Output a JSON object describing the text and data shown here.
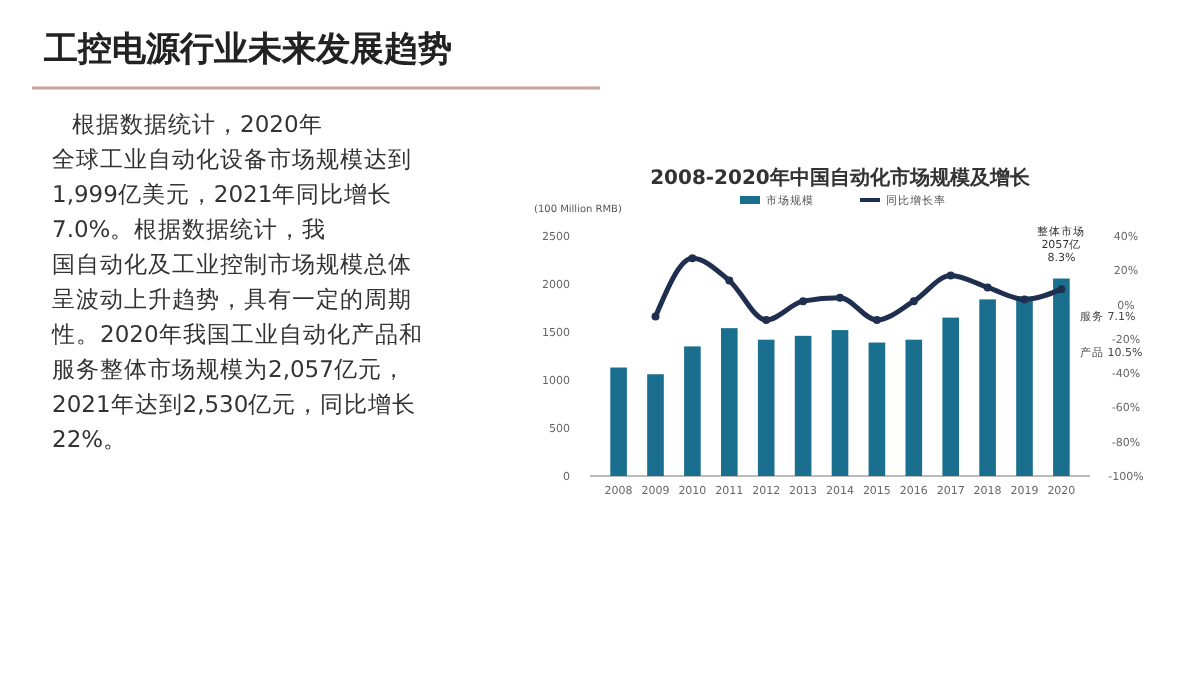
{
  "chart_data": [
    {
      "type": "other",
      "title": "工控电源行业未来发展趋势",
      "annotations": [
        "根据数据统计，2020年",
        "全球工业自动化设备市场规模达到",
        "1,999亿美元，2021年同比增长",
        "7.0%。根据数据统计，我",
        "国自动化及工业控制市场规模总体",
        "呈波动上升趋势，具有一定的周期",
        "性。2020年我国工业自动化产品和",
        "服务整体市场规模为2,057亿元，",
        "2021年达到2,530亿元，同比增长",
        "22%。"
      ]
    },
    {
      "type": "bar",
      "title": "2008-2020年中国自动化市场规模及增长",
      "ylabel": "(100 Million RMB)",
      "categories": [
        "2008",
        "2009",
        "2010",
        "2011",
        "2012",
        "2013",
        "2014",
        "2015",
        "2016",
        "2017",
        "2018",
        "2019",
        "2020"
      ],
      "series": [
        {
          "name": "市场规模",
          "color": "#1a6f8f",
          "values": [
            1130,
            1060,
            1350,
            1540,
            1420,
            1460,
            1520,
            1390,
            1420,
            1650,
            1840,
            1870,
            2057
          ]
        },
        {
          "name": "同比增长率",
          "type": "line",
          "axis": "y2",
          "color": "#1f2f4f",
          "values": [
            null,
            -7,
            27,
            14,
            -9,
            2,
            4,
            -9,
            2,
            17,
            10,
            3,
            9
          ]
        }
      ],
      "ylim": [
        0,
        2500
      ],
      "yticks": [
        0,
        500,
        1000,
        1500,
        2000,
        2500
      ],
      "y2lim": [
        -100,
        40
      ],
      "y2ticks": [
        {
          "value": -100,
          "label": "-100%"
        },
        {
          "value": -80,
          "label": "-80%"
        },
        {
          "value": -60,
          "label": "-60%"
        },
        {
          "value": -40,
          "label": "-40%"
        },
        {
          "value": -20,
          "label": "-20%"
        },
        {
          "value": 0,
          "label": "0%"
        },
        {
          "value": 20,
          "label": "20%"
        },
        {
          "value": 40,
          "label": "40%"
        }
      ],
      "legend": "top",
      "marker": "circle",
      "line_style": "solid",
      "grid": false,
      "annotations": [
        {
          "text": "整体市场 2057亿 8.3%",
          "x": "2020",
          "y": 2057
        },
        "服务 7.1%",
        "产品 10.5%"
      ]
    }
  ]
}
